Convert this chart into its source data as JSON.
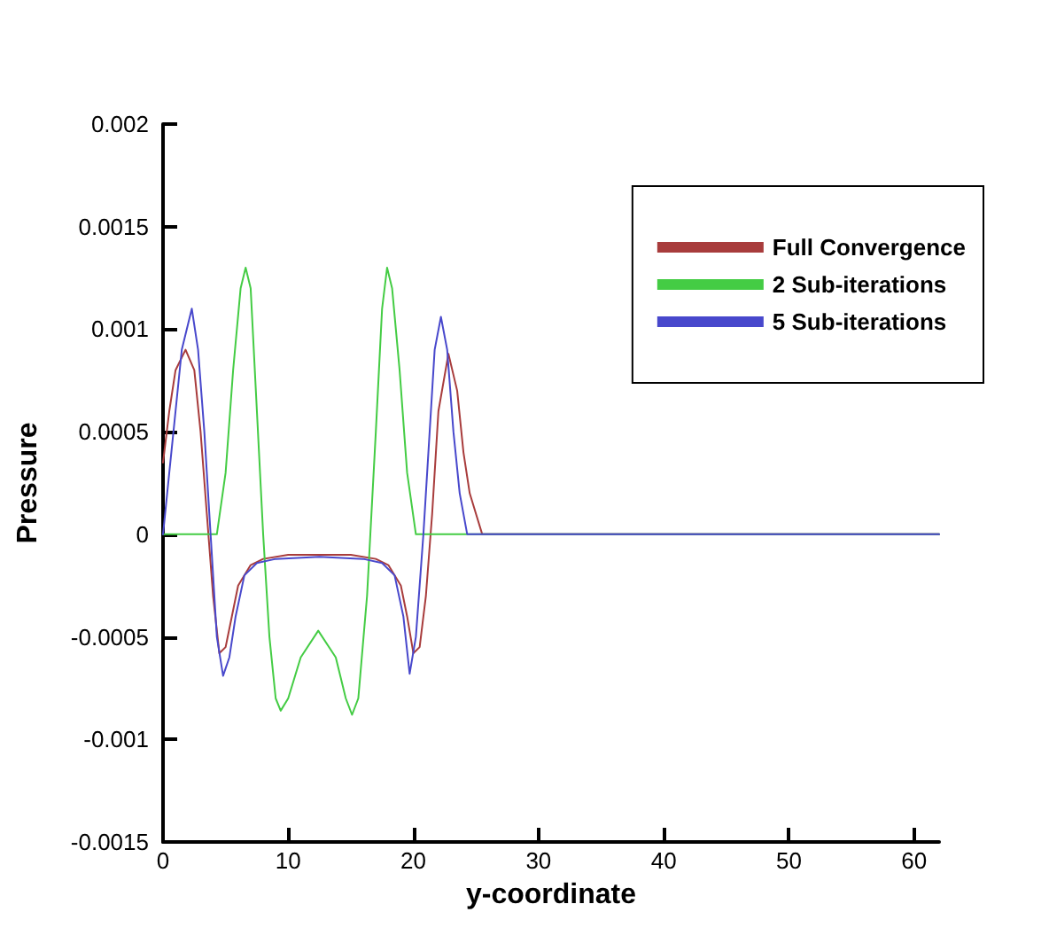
{
  "chart_data": {
    "type": "line",
    "xlabel": "y-coordinate",
    "ylabel": "Pressure",
    "xlim": [
      0,
      62
    ],
    "xticks": [
      0,
      10,
      20,
      30,
      40,
      50,
      60
    ],
    "ylim": [
      -0.0015,
      0.002
    ],
    "yticks": [
      -0.0015,
      -0.001,
      -0.0005,
      0,
      0.0005,
      0.001,
      0.0015,
      0.002
    ],
    "grid": false,
    "legend": "top right",
    "marker": "none",
    "line_style": "solid",
    "series": [
      {
        "name": "Full Convergence",
        "color": "#a83c3c",
        "x": [
          0,
          0.5,
          1,
          1.8,
          2.5,
          3,
          3.5,
          4,
          4.5,
          5,
          5.5,
          6,
          7,
          8,
          10,
          12.5,
          15,
          17,
          18,
          19,
          19.5,
          20,
          20.5,
          21,
          21.5,
          22,
          22.8,
          23.5,
          24,
          24.5,
          25,
          25.5,
          27,
          62
        ],
        "values": [
          0.00035,
          0.0006,
          0.0008,
          0.0009,
          0.0008,
          0.0005,
          0.0001,
          -0.0003,
          -0.00058,
          -0.00055,
          -0.0004,
          -0.00025,
          -0.00015,
          -0.00012,
          -0.0001,
          -0.0001,
          -0.0001,
          -0.00012,
          -0.00015,
          -0.00025,
          -0.0004,
          -0.00058,
          -0.00055,
          -0.0003,
          0.0001,
          0.0006,
          0.00088,
          0.0007,
          0.0004,
          0.0002,
          0.0001,
          0,
          0,
          0
        ]
      },
      {
        "name": "2 Sub-iterations",
        "color": "#44cc44",
        "x": [
          0,
          3.5,
          4.3,
          5,
          5.6,
          6.2,
          6.6,
          7,
          7.5,
          8,
          8.5,
          9,
          9.4,
          10,
          11,
          12.4,
          13.8,
          14.6,
          15.1,
          15.6,
          16.3,
          17,
          17.5,
          17.9,
          18.3,
          18.9,
          19.5,
          20.2,
          20.8,
          62
        ],
        "values": [
          0,
          0,
          0,
          0.0003,
          0.0008,
          0.0012,
          0.0013,
          0.0012,
          0.0006,
          0,
          -0.0005,
          -0.0008,
          -0.00086,
          -0.0008,
          -0.0006,
          -0.00047,
          -0.0006,
          -0.0008,
          -0.00088,
          -0.0008,
          -0.0003,
          0.0005,
          0.0011,
          0.0013,
          0.0012,
          0.0008,
          0.0003,
          0,
          0,
          0
        ]
      },
      {
        "name": "5 Sub-iterations",
        "color": "#4848cc",
        "x": [
          0,
          0.5,
          1,
          1.5,
          2.3,
          2.8,
          3.3,
          3.8,
          4.3,
          4.8,
          5.3,
          5.8,
          6.5,
          7.5,
          9,
          12.5,
          16,
          17.5,
          18.5,
          19.2,
          19.7,
          20.2,
          20.8,
          21.3,
          21.7,
          22.2,
          22.7,
          23.2,
          23.7,
          24.3,
          25,
          26,
          62
        ],
        "values": [
          0,
          0.0003,
          0.0006,
          0.0009,
          0.0011,
          0.0009,
          0.0005,
          0,
          -0.0005,
          -0.00069,
          -0.0006,
          -0.0004,
          -0.0002,
          -0.00014,
          -0.00012,
          -0.00011,
          -0.00012,
          -0.00014,
          -0.0002,
          -0.0004,
          -0.00068,
          -0.0005,
          0,
          0.0005,
          0.0009,
          0.00106,
          0.0009,
          0.0005,
          0.0002,
          0,
          0,
          0,
          0
        ]
      }
    ]
  }
}
